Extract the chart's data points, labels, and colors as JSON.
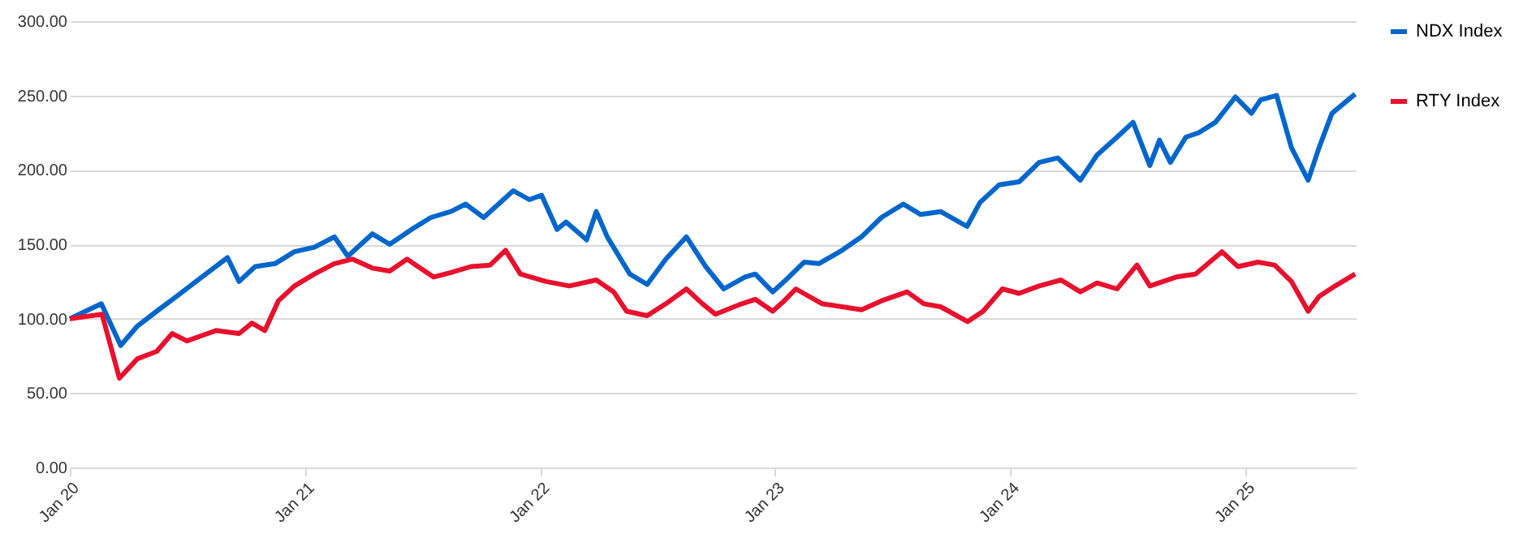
{
  "chart_data": {
    "type": "line",
    "legend": "right",
    "grid": "y",
    "line_style": "solid",
    "marker": "none",
    "xlim": [
      "2020-01-01",
      "2025-06-21"
    ],
    "xticks": [
      {
        "value": "2020-01-01",
        "label": "Jan 20"
      },
      {
        "value": "2021-01-01",
        "label": "Jan 21"
      },
      {
        "value": "2022-01-01",
        "label": "Jan 22"
      },
      {
        "value": "2023-01-01",
        "label": "Jan 23"
      },
      {
        "value": "2024-01-01",
        "label": "Jan 24"
      },
      {
        "value": "2025-01-01",
        "label": "Jan 25"
      }
    ],
    "ylim": [
      0,
      300
    ],
    "yticks": [
      {
        "value": 0,
        "label": "0.00"
      },
      {
        "value": 50,
        "label": "50.00"
      },
      {
        "value": 100,
        "label": "100.00"
      },
      {
        "value": 150,
        "label": "150.00"
      },
      {
        "value": 200,
        "label": "200.00"
      },
      {
        "value": 250,
        "label": "250.00"
      },
      {
        "value": 300,
        "label": "300.00"
      }
    ],
    "series": [
      {
        "name": "NDX Index",
        "color": "#0066cc",
        "x": [
          "2020-01-01",
          "2020-02-19",
          "2020-03-20",
          "2020-04-15",
          "2020-05-15",
          "2020-06-15",
          "2020-07-15",
          "2020-09-02",
          "2020-09-20",
          "2020-10-15",
          "2020-11-15",
          "2020-12-15",
          "2021-01-15",
          "2021-02-15",
          "2021-03-08",
          "2021-04-15",
          "2021-05-12",
          "2021-06-15",
          "2021-07-15",
          "2021-08-15",
          "2021-09-07",
          "2021-10-05",
          "2021-11-20",
          "2021-12-15",
          "2022-01-03",
          "2022-01-27",
          "2022-02-10",
          "2022-03-14",
          "2022-03-29",
          "2022-04-15",
          "2022-05-20",
          "2022-06-16",
          "2022-07-15",
          "2022-08-16",
          "2022-09-15",
          "2022-10-13",
          "2022-11-15",
          "2022-12-01",
          "2022-12-28",
          "2023-01-15",
          "2023-02-15",
          "2023-03-10",
          "2023-04-15",
          "2023-05-15",
          "2023-06-15",
          "2023-07-19",
          "2023-08-15",
          "2023-09-15",
          "2023-10-26",
          "2023-11-15",
          "2023-12-15",
          "2024-01-15",
          "2024-02-15",
          "2024-03-15",
          "2024-04-19",
          "2024-05-15",
          "2024-06-15",
          "2024-07-10",
          "2024-08-05",
          "2024-08-20",
          "2024-09-06",
          "2024-09-30",
          "2024-10-20",
          "2024-11-15",
          "2024-12-16",
          "2025-01-10",
          "2025-01-24",
          "2025-02-18",
          "2025-03-13",
          "2025-04-08",
          "2025-04-25",
          "2025-05-15",
          "2025-06-20"
        ],
        "values": [
          100,
          110,
          82,
          95,
          105,
          115,
          125,
          141,
          125,
          135,
          137,
          145,
          148,
          155,
          142,
          157,
          150,
          160,
          168,
          172,
          177,
          168,
          186,
          180,
          183,
          160,
          165,
          153,
          172,
          155,
          130,
          123,
          140,
          155,
          135,
          120,
          128,
          130,
          118,
          125,
          138,
          137,
          146,
          155,
          168,
          177,
          170,
          172,
          162,
          178,
          190,
          192,
          205,
          208,
          193,
          210,
          222,
          232,
          203,
          220,
          205,
          222,
          225,
          232,
          249,
          238,
          247,
          250,
          215,
          193,
          215,
          238,
          251
        ]
      },
      {
        "name": "RTY Index",
        "color": "#e8112d",
        "x": [
          "2020-01-01",
          "2020-02-20",
          "2020-03-18",
          "2020-04-15",
          "2020-05-15",
          "2020-06-08",
          "2020-07-01",
          "2020-08-15",
          "2020-09-20",
          "2020-10-10",
          "2020-10-30",
          "2020-11-20",
          "2020-12-15",
          "2021-01-15",
          "2021-02-15",
          "2021-03-15",
          "2021-04-15",
          "2021-05-12",
          "2021-06-08",
          "2021-07-19",
          "2021-08-15",
          "2021-09-15",
          "2021-10-15",
          "2021-11-08",
          "2021-12-01",
          "2022-01-10",
          "2022-02-15",
          "2022-03-29",
          "2022-04-25",
          "2022-05-15",
          "2022-06-16",
          "2022-07-15",
          "2022-08-16",
          "2022-09-10",
          "2022-09-30",
          "2022-11-10",
          "2022-12-01",
          "2022-12-28",
          "2023-01-15",
          "2023-02-02",
          "2023-03-15",
          "2023-04-15",
          "2023-05-15",
          "2023-06-15",
          "2023-07-25",
          "2023-08-20",
          "2023-09-15",
          "2023-10-27",
          "2023-11-20",
          "2023-12-20",
          "2024-01-15",
          "2024-02-15",
          "2024-03-20",
          "2024-04-19",
          "2024-05-15",
          "2024-06-15",
          "2024-07-16",
          "2024-08-05",
          "2024-09-15",
          "2024-10-15",
          "2024-11-25",
          "2024-12-20",
          "2025-01-20",
          "2025-02-15",
          "2025-03-13",
          "2025-04-08",
          "2025-04-25",
          "2025-05-20",
          "2025-06-20"
        ],
        "values": [
          100,
          103,
          60,
          73,
          78,
          90,
          85,
          92,
          90,
          97,
          92,
          112,
          122,
          130,
          137,
          140,
          134,
          132,
          140,
          128,
          131,
          135,
          136,
          146,
          130,
          125,
          122,
          126,
          118,
          105,
          102,
          110,
          120,
          110,
          103,
          110,
          113,
          105,
          112,
          120,
          110,
          108,
          106,
          112,
          118,
          110,
          108,
          98,
          105,
          120,
          117,
          122,
          126,
          118,
          124,
          120,
          136,
          122,
          128,
          130,
          145,
          135,
          138,
          136,
          125,
          105,
          115,
          122,
          130
        ]
      }
    ]
  }
}
